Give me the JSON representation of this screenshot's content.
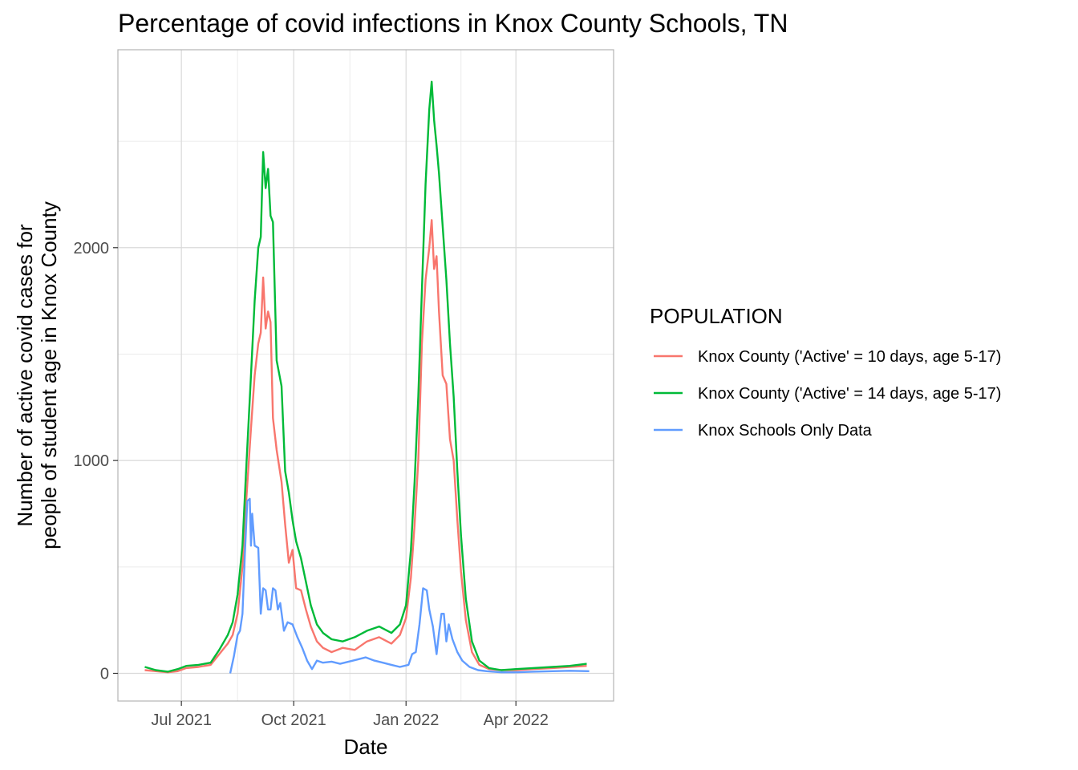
{
  "chart_data": {
    "type": "line",
    "title": "Percentage of covid infections in Knox County Schools, TN",
    "xlabel": "Date",
    "ylabel": [
      "Number of active covid cases for",
      "people of student age in Knox County"
    ],
    "xlim": [
      "2021-05-10",
      "2022-06-20"
    ],
    "ylim": [
      -130,
      2930
    ],
    "x_ticks": [
      {
        "date": "2021-07-01",
        "label": "Jul 2021"
      },
      {
        "date": "2021-10-01",
        "label": "Oct 2021"
      },
      {
        "date": "2022-01-01",
        "label": "Jan 2022"
      },
      {
        "date": "2022-04-01",
        "label": "Apr 2022"
      }
    ],
    "y_ticks": [
      0,
      1000,
      2000
    ],
    "grid": true,
    "legend": {
      "title": "POPULATION",
      "position": "right"
    },
    "series": [
      {
        "name": "Knox County ('Active' = 10 days, age 5-17)",
        "color": "#f8766d",
        "points": [
          [
            "2021-06-01",
            15
          ],
          [
            "2021-06-10",
            10
          ],
          [
            "2021-06-20",
            5
          ],
          [
            "2021-06-28",
            10
          ],
          [
            "2021-07-05",
            25
          ],
          [
            "2021-07-15",
            30
          ],
          [
            "2021-07-25",
            40
          ],
          [
            "2021-08-01",
            90
          ],
          [
            "2021-08-08",
            140
          ],
          [
            "2021-08-12",
            180
          ],
          [
            "2021-08-16",
            280
          ],
          [
            "2021-08-20",
            500
          ],
          [
            "2021-08-23",
            800
          ],
          [
            "2021-08-27",
            1150
          ],
          [
            "2021-08-30",
            1400
          ],
          [
            "2021-09-02",
            1550
          ],
          [
            "2021-09-04",
            1600
          ],
          [
            "2021-09-06",
            1860
          ],
          [
            "2021-09-08",
            1620
          ],
          [
            "2021-09-10",
            1700
          ],
          [
            "2021-09-12",
            1650
          ],
          [
            "2021-09-14",
            1200
          ],
          [
            "2021-09-17",
            1050
          ],
          [
            "2021-09-21",
            900
          ],
          [
            "2021-09-24",
            700
          ],
          [
            "2021-09-27",
            520
          ],
          [
            "2021-09-30",
            580
          ],
          [
            "2021-10-03",
            400
          ],
          [
            "2021-10-07",
            390
          ],
          [
            "2021-10-11",
            300
          ],
          [
            "2021-10-15",
            220
          ],
          [
            "2021-10-20",
            150
          ],
          [
            "2021-10-25",
            120
          ],
          [
            "2021-11-01",
            100
          ],
          [
            "2021-11-10",
            120
          ],
          [
            "2021-11-20",
            110
          ],
          [
            "2021-11-30",
            150
          ],
          [
            "2021-12-10",
            170
          ],
          [
            "2021-12-20",
            140
          ],
          [
            "2021-12-27",
            180
          ],
          [
            "2022-01-01",
            260
          ],
          [
            "2022-01-05",
            450
          ],
          [
            "2022-01-08",
            700
          ],
          [
            "2022-01-11",
            1000
          ],
          [
            "2022-01-14",
            1550
          ],
          [
            "2022-01-17",
            1850
          ],
          [
            "2022-01-20",
            2000
          ],
          [
            "2022-01-22",
            2130
          ],
          [
            "2022-01-24",
            1900
          ],
          [
            "2022-01-26",
            1960
          ],
          [
            "2022-01-28",
            1700
          ],
          [
            "2022-01-31",
            1400
          ],
          [
            "2022-02-03",
            1360
          ],
          [
            "2022-02-06",
            1100
          ],
          [
            "2022-02-09",
            1000
          ],
          [
            "2022-02-12",
            720
          ],
          [
            "2022-02-15",
            480
          ],
          [
            "2022-02-19",
            250
          ],
          [
            "2022-02-24",
            100
          ],
          [
            "2022-03-02",
            40
          ],
          [
            "2022-03-10",
            20
          ],
          [
            "2022-03-20",
            15
          ],
          [
            "2022-04-01",
            15
          ],
          [
            "2022-04-15",
            20
          ],
          [
            "2022-05-01",
            25
          ],
          [
            "2022-05-15",
            30
          ],
          [
            "2022-05-29",
            35
          ]
        ]
      },
      {
        "name": "Knox County ('Active' = 14 days, age 5-17)",
        "color": "#00ba38",
        "points": [
          [
            "2021-06-01",
            30
          ],
          [
            "2021-06-10",
            15
          ],
          [
            "2021-06-20",
            8
          ],
          [
            "2021-06-28",
            20
          ],
          [
            "2021-07-05",
            35
          ],
          [
            "2021-07-15",
            40
          ],
          [
            "2021-07-25",
            50
          ],
          [
            "2021-08-01",
            110
          ],
          [
            "2021-08-08",
            180
          ],
          [
            "2021-08-12",
            240
          ],
          [
            "2021-08-16",
            370
          ],
          [
            "2021-08-20",
            600
          ],
          [
            "2021-08-23",
            950
          ],
          [
            "2021-08-27",
            1400
          ],
          [
            "2021-08-30",
            1750
          ],
          [
            "2021-09-02",
            2000
          ],
          [
            "2021-09-04",
            2050
          ],
          [
            "2021-09-06",
            2450
          ],
          [
            "2021-09-08",
            2280
          ],
          [
            "2021-09-10",
            2370
          ],
          [
            "2021-09-12",
            2150
          ],
          [
            "2021-09-14",
            2120
          ],
          [
            "2021-09-17",
            1470
          ],
          [
            "2021-09-21",
            1350
          ],
          [
            "2021-09-24",
            950
          ],
          [
            "2021-09-27",
            850
          ],
          [
            "2021-09-30",
            720
          ],
          [
            "2021-10-03",
            620
          ],
          [
            "2021-10-07",
            540
          ],
          [
            "2021-10-11",
            430
          ],
          [
            "2021-10-15",
            320
          ],
          [
            "2021-10-20",
            230
          ],
          [
            "2021-10-25",
            190
          ],
          [
            "2021-11-01",
            160
          ],
          [
            "2021-11-10",
            150
          ],
          [
            "2021-11-20",
            170
          ],
          [
            "2021-11-30",
            200
          ],
          [
            "2021-12-10",
            220
          ],
          [
            "2021-12-20",
            190
          ],
          [
            "2021-12-27",
            230
          ],
          [
            "2022-01-01",
            320
          ],
          [
            "2022-01-05",
            580
          ],
          [
            "2022-01-08",
            900
          ],
          [
            "2022-01-11",
            1300
          ],
          [
            "2022-01-14",
            1800
          ],
          [
            "2022-01-17",
            2300
          ],
          [
            "2022-01-20",
            2650
          ],
          [
            "2022-01-22",
            2780
          ],
          [
            "2022-01-24",
            2600
          ],
          [
            "2022-01-26",
            2480
          ],
          [
            "2022-01-28",
            2350
          ],
          [
            "2022-01-31",
            2100
          ],
          [
            "2022-02-03",
            1850
          ],
          [
            "2022-02-06",
            1550
          ],
          [
            "2022-02-09",
            1300
          ],
          [
            "2022-02-12",
            950
          ],
          [
            "2022-02-15",
            650
          ],
          [
            "2022-02-19",
            350
          ],
          [
            "2022-02-24",
            150
          ],
          [
            "2022-03-02",
            60
          ],
          [
            "2022-03-10",
            25
          ],
          [
            "2022-03-20",
            15
          ],
          [
            "2022-04-01",
            20
          ],
          [
            "2022-04-15",
            25
          ],
          [
            "2022-05-01",
            30
          ],
          [
            "2022-05-15",
            35
          ],
          [
            "2022-05-29",
            45
          ]
        ]
      },
      {
        "name": "Knox Schools Only Data",
        "color": "#619cff",
        "points": [
          [
            "2021-08-10",
            0
          ],
          [
            "2021-08-13",
            80
          ],
          [
            "2021-08-16",
            180
          ],
          [
            "2021-08-18",
            200
          ],
          [
            "2021-08-20",
            280
          ],
          [
            "2021-08-22",
            560
          ],
          [
            "2021-08-24",
            810
          ],
          [
            "2021-08-26",
            820
          ],
          [
            "2021-08-27",
            600
          ],
          [
            "2021-08-28",
            750
          ],
          [
            "2021-08-30",
            600
          ],
          [
            "2021-09-02",
            590
          ],
          [
            "2021-09-04",
            280
          ],
          [
            "2021-09-06",
            400
          ],
          [
            "2021-09-08",
            390
          ],
          [
            "2021-09-10",
            300
          ],
          [
            "2021-09-12",
            300
          ],
          [
            "2021-09-14",
            400
          ],
          [
            "2021-09-16",
            390
          ],
          [
            "2021-09-18",
            300
          ],
          [
            "2021-09-20",
            330
          ],
          [
            "2021-09-23",
            200
          ],
          [
            "2021-09-26",
            240
          ],
          [
            "2021-09-30",
            230
          ],
          [
            "2021-10-04",
            170
          ],
          [
            "2021-10-08",
            120
          ],
          [
            "2021-10-12",
            60
          ],
          [
            "2021-10-16",
            20
          ],
          [
            "2021-10-20",
            60
          ],
          [
            "2021-10-25",
            50
          ],
          [
            "2021-11-01",
            55
          ],
          [
            "2021-11-08",
            45
          ],
          [
            "2021-11-15",
            55
          ],
          [
            "2021-11-22",
            65
          ],
          [
            "2021-11-29",
            75
          ],
          [
            "2021-12-06",
            60
          ],
          [
            "2021-12-13",
            50
          ],
          [
            "2021-12-20",
            40
          ],
          [
            "2021-12-27",
            30
          ],
          [
            "2022-01-03",
            40
          ],
          [
            "2022-01-06",
            90
          ],
          [
            "2022-01-09",
            100
          ],
          [
            "2022-01-12",
            230
          ],
          [
            "2022-01-15",
            400
          ],
          [
            "2022-01-18",
            390
          ],
          [
            "2022-01-20",
            300
          ],
          [
            "2022-01-23",
            220
          ],
          [
            "2022-01-26",
            90
          ],
          [
            "2022-01-28",
            190
          ],
          [
            "2022-01-30",
            280
          ],
          [
            "2022-02-01",
            280
          ],
          [
            "2022-02-03",
            150
          ],
          [
            "2022-02-05",
            230
          ],
          [
            "2022-02-08",
            160
          ],
          [
            "2022-02-12",
            100
          ],
          [
            "2022-02-16",
            60
          ],
          [
            "2022-02-22",
            30
          ],
          [
            "2022-03-01",
            15
          ],
          [
            "2022-03-08",
            10
          ],
          [
            "2022-03-20",
            5
          ],
          [
            "2022-04-01",
            5
          ],
          [
            "2022-04-15",
            8
          ],
          [
            "2022-05-01",
            10
          ],
          [
            "2022-05-15",
            12
          ],
          [
            "2022-05-31",
            10
          ]
        ]
      }
    ]
  }
}
